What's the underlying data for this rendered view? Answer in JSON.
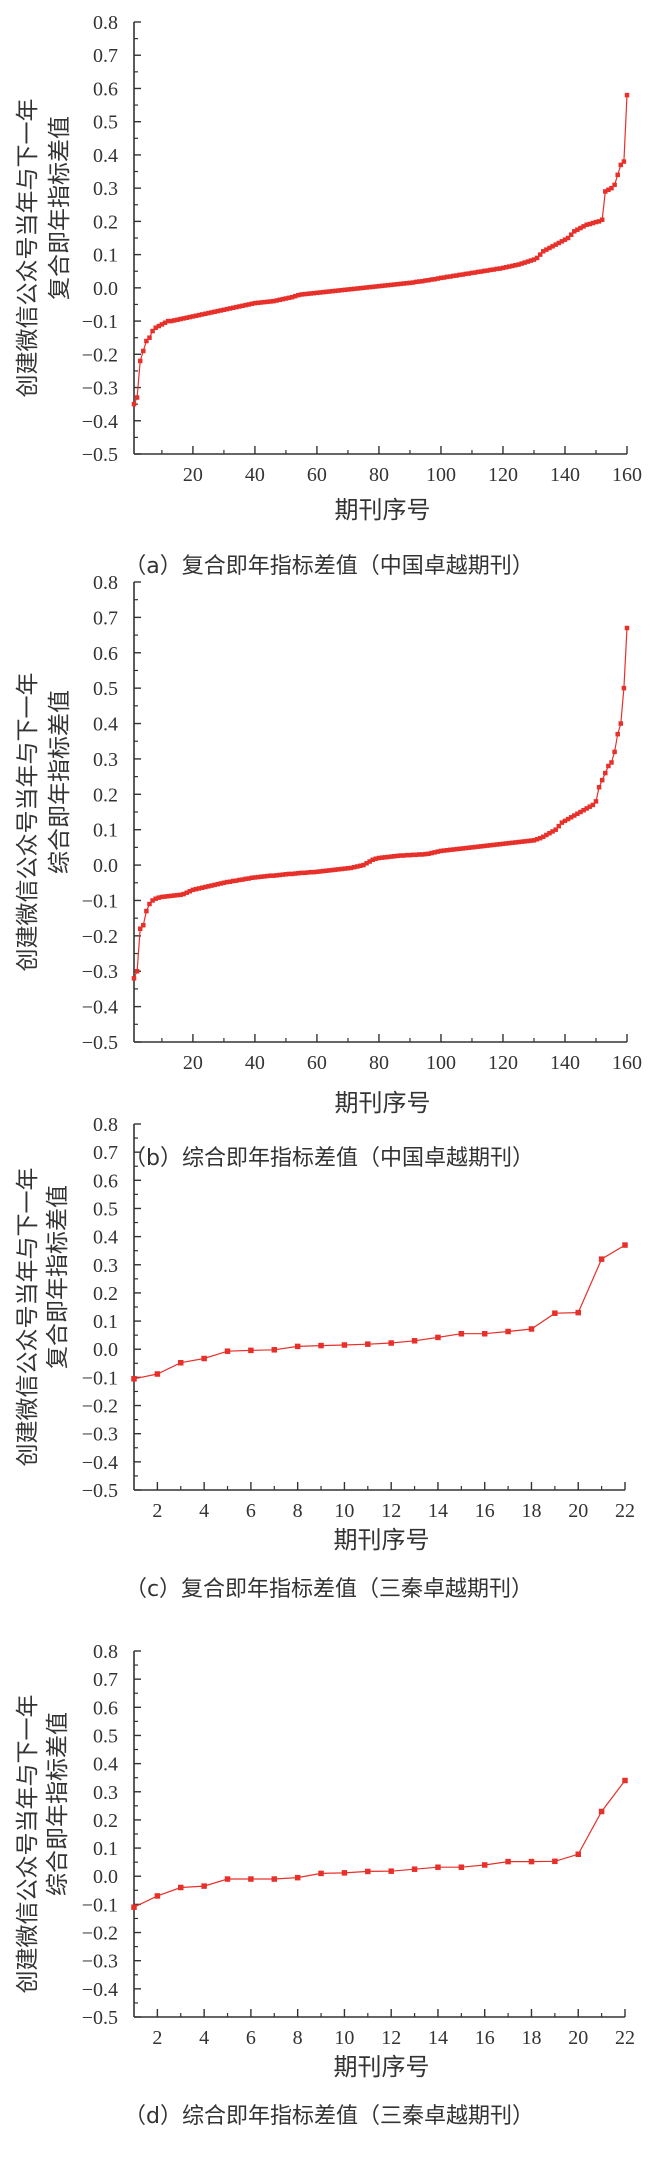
{
  "chart_data": [
    {
      "type": "line",
      "caption": "（a）复合即年指标差值（中国卓越期刊）",
      "xlabel": "期刊序号",
      "ylabel": [
        "创建微信公众号当年与下一年",
        "复合即年指标差值"
      ],
      "xlim": [
        1,
        160
      ],
      "ylim": [
        -0.5,
        0.8
      ],
      "xticks": [
        20,
        40,
        60,
        80,
        100,
        120,
        140,
        160
      ],
      "xtick_labels": [
        "20",
        "40",
        "60",
        "80",
        "100",
        "120",
        "140",
        "160"
      ],
      "yticks": [
        -0.5,
        -0.4,
        -0.3,
        -0.2,
        -0.1,
        0.0,
        0.1,
        0.2,
        0.3,
        0.4,
        0.5,
        0.6,
        0.7,
        0.8
      ],
      "ytick_labels": [
        "-0.5",
        "-0.4",
        "-0.3",
        "-0.2",
        "-0.1",
        "0.0",
        "0.1",
        "0.2",
        "0.3",
        "0.4",
        "0.5",
        "0.6",
        "0.7",
        "0.8"
      ],
      "color": "#e8302a",
      "marker": "square",
      "values": [
        -0.35,
        -0.33,
        -0.22,
        -0.19,
        -0.16,
        -0.15,
        -0.13,
        -0.12,
        -0.115,
        -0.11,
        -0.105,
        -0.1,
        -0.1,
        -0.098,
        -0.096,
        -0.094,
        -0.092,
        -0.09,
        -0.088,
        -0.086,
        -0.084,
        -0.082,
        -0.08,
        -0.078,
        -0.076,
        -0.074,
        -0.072,
        -0.07,
        -0.068,
        -0.066,
        -0.064,
        -0.062,
        -0.06,
        -0.058,
        -0.056,
        -0.054,
        -0.052,
        -0.05,
        -0.048,
        -0.046,
        -0.045,
        -0.044,
        -0.043,
        -0.042,
        -0.041,
        -0.04,
        -0.038,
        -0.036,
        -0.034,
        -0.032,
        -0.03,
        -0.028,
        -0.025,
        -0.022,
        -0.02,
        -0.019,
        -0.018,
        -0.017,
        -0.016,
        -0.015,
        -0.014,
        -0.013,
        -0.012,
        -0.011,
        -0.01,
        -0.009,
        -0.008,
        -0.007,
        -0.006,
        -0.005,
        -0.004,
        -0.003,
        -0.002,
        -0.001,
        0.0,
        0.001,
        0.002,
        0.003,
        0.004,
        0.005,
        0.006,
        0.007,
        0.008,
        0.009,
        0.01,
        0.011,
        0.012,
        0.013,
        0.014,
        0.015,
        0.016,
        0.018,
        0.019,
        0.02,
        0.022,
        0.023,
        0.025,
        0.026,
        0.028,
        0.03,
        0.031,
        0.033,
        0.034,
        0.036,
        0.037,
        0.039,
        0.04,
        0.042,
        0.043,
        0.045,
        0.046,
        0.048,
        0.049,
        0.051,
        0.052,
        0.054,
        0.055,
        0.057,
        0.058,
        0.06,
        0.062,
        0.064,
        0.066,
        0.068,
        0.07,
        0.073,
        0.076,
        0.079,
        0.082,
        0.085,
        0.09,
        0.1,
        0.11,
        0.115,
        0.12,
        0.125,
        0.13,
        0.135,
        0.14,
        0.145,
        0.15,
        0.16,
        0.17,
        0.175,
        0.18,
        0.185,
        0.19,
        0.192,
        0.195,
        0.198,
        0.2,
        0.205,
        0.29,
        0.295,
        0.3,
        0.31,
        0.34,
        0.37,
        0.38,
        0.58
      ]
    },
    {
      "type": "line",
      "caption": "（b）综合即年指标差值（中国卓越期刊）",
      "xlabel": "期刊序号",
      "ylabel": [
        "创建微信公众号当年与下一年",
        "综合即年指标差值"
      ],
      "xlim": [
        1,
        160
      ],
      "ylim": [
        -0.5,
        0.8
      ],
      "xticks": [
        20,
        40,
        60,
        80,
        100,
        120,
        140,
        160
      ],
      "xtick_labels": [
        "20",
        "40",
        "60",
        "80",
        "100",
        "120",
        "140",
        "160"
      ],
      "yticks": [
        -0.5,
        -0.4,
        -0.3,
        -0.2,
        -0.1,
        0.0,
        0.1,
        0.2,
        0.3,
        0.4,
        0.5,
        0.6,
        0.7,
        0.8
      ],
      "ytick_labels": [
        "-0.5",
        "-0.4",
        "-0.3",
        "-0.2",
        "-0.1",
        "0.0",
        "0.1",
        "0.2",
        "0.3",
        "0.4",
        "0.5",
        "0.6",
        "0.7",
        "0.8"
      ],
      "color": "#e8302a",
      "marker": "square",
      "values": [
        -0.32,
        -0.3,
        -0.18,
        -0.17,
        -0.13,
        -0.11,
        -0.1,
        -0.095,
        -0.092,
        -0.09,
        -0.089,
        -0.088,
        -0.087,
        -0.086,
        -0.085,
        -0.084,
        -0.082,
        -0.078,
        -0.074,
        -0.07,
        -0.068,
        -0.066,
        -0.064,
        -0.062,
        -0.06,
        -0.058,
        -0.056,
        -0.054,
        -0.052,
        -0.05,
        -0.048,
        -0.047,
        -0.045,
        -0.044,
        -0.042,
        -0.041,
        -0.039,
        -0.038,
        -0.036,
        -0.035,
        -0.034,
        -0.033,
        -0.032,
        -0.031,
        -0.03,
        -0.03,
        -0.029,
        -0.028,
        -0.027,
        -0.026,
        -0.025,
        -0.025,
        -0.024,
        -0.023,
        -0.022,
        -0.022,
        -0.021,
        -0.02,
        -0.02,
        -0.019,
        -0.018,
        -0.017,
        -0.016,
        -0.015,
        -0.014,
        -0.013,
        -0.012,
        -0.011,
        -0.01,
        -0.009,
        -0.008,
        -0.006,
        -0.004,
        -0.002,
        0.0,
        0.005,
        0.01,
        0.015,
        0.018,
        0.02,
        0.021,
        0.022,
        0.023,
        0.024,
        0.025,
        0.026,
        0.027,
        0.027,
        0.028,
        0.028,
        0.029,
        0.029,
        0.03,
        0.03,
        0.031,
        0.032,
        0.034,
        0.036,
        0.038,
        0.04,
        0.041,
        0.042,
        0.043,
        0.044,
        0.045,
        0.046,
        0.047,
        0.048,
        0.049,
        0.05,
        0.051,
        0.052,
        0.053,
        0.054,
        0.055,
        0.056,
        0.057,
        0.058,
        0.059,
        0.06,
        0.061,
        0.062,
        0.063,
        0.064,
        0.065,
        0.066,
        0.067,
        0.068,
        0.069,
        0.07,
        0.073,
        0.076,
        0.08,
        0.085,
        0.09,
        0.095,
        0.1,
        0.11,
        0.12,
        0.125,
        0.13,
        0.135,
        0.14,
        0.145,
        0.15,
        0.155,
        0.16,
        0.165,
        0.17,
        0.18,
        0.22,
        0.24,
        0.26,
        0.28,
        0.29,
        0.32,
        0.37,
        0.4,
        0.5,
        0.67
      ]
    },
    {
      "type": "line",
      "caption": "（c）复合即年指标差值（三秦卓越期刊）",
      "xlabel": "期刊序号",
      "ylabel": [
        "创建微信公众号当年与下一年",
        "复合即年指标差值"
      ],
      "xlim": [
        1,
        22
      ],
      "ylim": [
        -0.5,
        0.8
      ],
      "xticks": [
        2,
        4,
        6,
        8,
        10,
        12,
        14,
        16,
        18,
        20,
        22
      ],
      "xtick_labels": [
        "2",
        "4",
        "6",
        "8",
        "10",
        "12",
        "14",
        "16",
        "18",
        "20",
        "22"
      ],
      "yticks": [
        -0.5,
        -0.4,
        -0.3,
        -0.2,
        -0.1,
        0.0,
        0.1,
        0.2,
        0.3,
        0.4,
        0.5,
        0.6,
        0.7,
        0.8
      ],
      "ytick_labels": [
        "-0.5",
        "-0.4",
        "-0.3",
        "-0.2",
        "-0.1",
        "0.0",
        "0.1",
        "0.2",
        "0.3",
        "0.4",
        "0.5",
        "0.6",
        "0.7",
        "0.8"
      ],
      "color": "#e8302a",
      "marker": "square",
      "values": [
        -0.105,
        -0.088,
        -0.048,
        -0.033,
        -0.007,
        -0.004,
        -0.002,
        0.01,
        0.013,
        0.015,
        0.018,
        0.022,
        0.03,
        0.042,
        0.055,
        0.055,
        0.063,
        0.072,
        0.128,
        0.13,
        0.32,
        0.37
      ]
    },
    {
      "type": "line",
      "caption": "（d）综合即年指标差值（三秦卓越期刊）",
      "xlabel": "期刊序号",
      "ylabel": [
        "创建微信公众号当年与下一年",
        "综合即年指标差值"
      ],
      "xlim": [
        1,
        22
      ],
      "ylim": [
        -0.5,
        0.8
      ],
      "xticks": [
        2,
        4,
        6,
        8,
        10,
        12,
        14,
        16,
        18,
        20,
        22
      ],
      "xtick_labels": [
        "2",
        "4",
        "6",
        "8",
        "10",
        "12",
        "14",
        "16",
        "18",
        "20",
        "22"
      ],
      "yticks": [
        -0.5,
        -0.4,
        -0.3,
        -0.2,
        -0.1,
        0.0,
        0.1,
        0.2,
        0.3,
        0.4,
        0.5,
        0.6,
        0.7,
        0.8
      ],
      "ytick_labels": [
        "-0.5",
        "-0.4",
        "-0.3",
        "-0.2",
        "-0.1",
        "0.0",
        "0.1",
        "0.2",
        "0.3",
        "0.4",
        "0.5",
        "0.6",
        "0.7",
        "0.8"
      ],
      "color": "#e8302a",
      "marker": "square",
      "values": [
        -0.11,
        -0.07,
        -0.04,
        -0.035,
        -0.01,
        -0.01,
        -0.01,
        -0.005,
        0.01,
        0.012,
        0.017,
        0.018,
        0.025,
        0.032,
        0.032,
        0.04,
        0.052,
        0.052,
        0.053,
        0.078,
        0.23,
        0.34
      ]
    }
  ]
}
